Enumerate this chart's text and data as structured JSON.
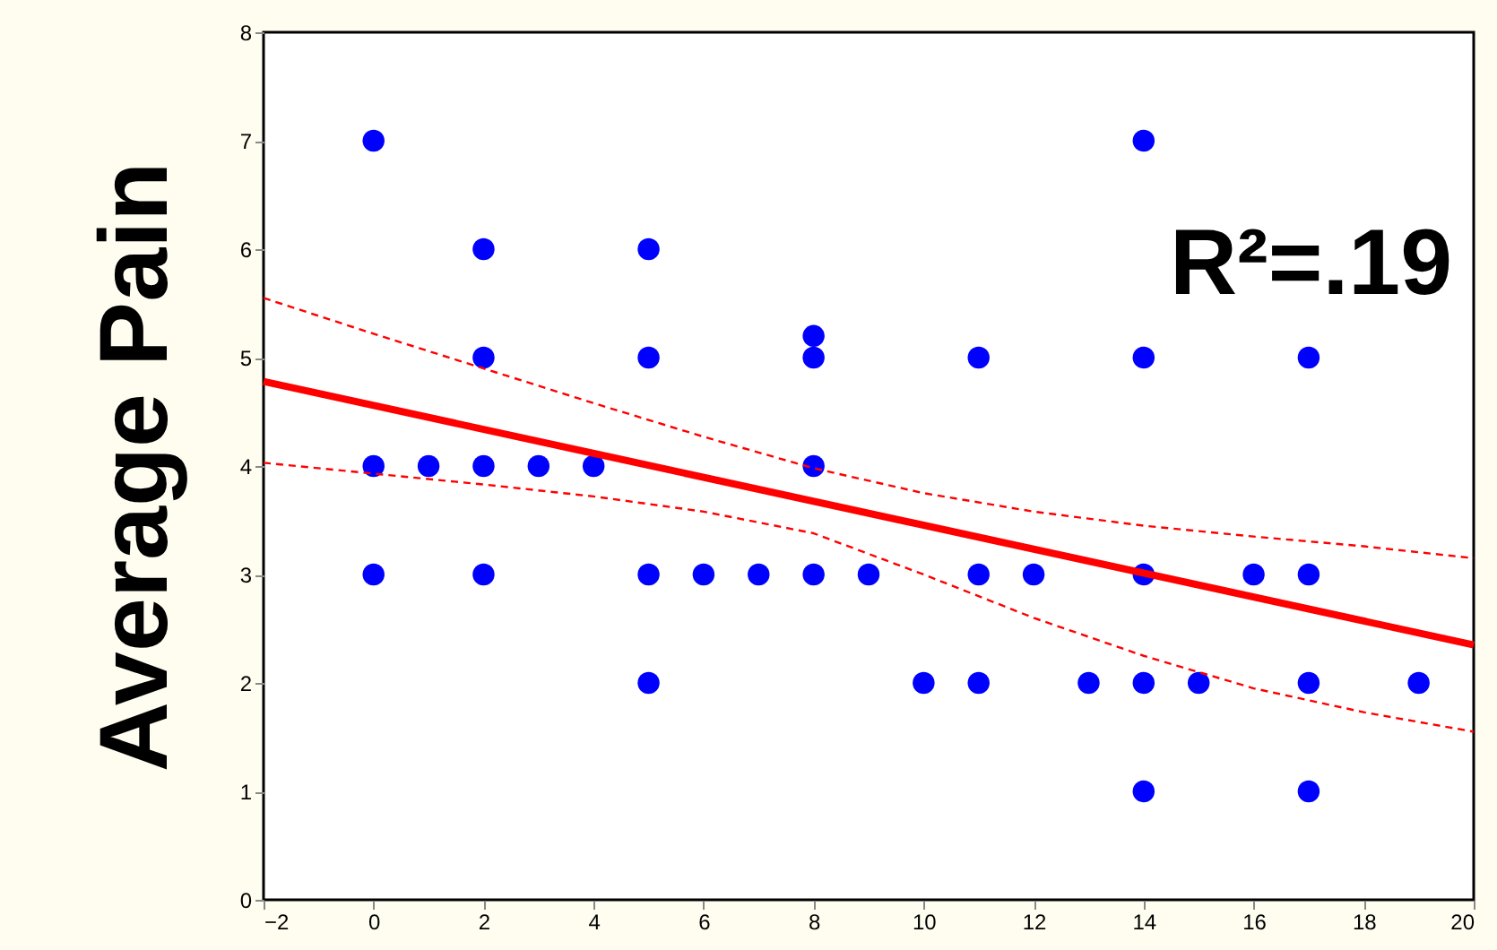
{
  "chart_data": {
    "type": "scatter",
    "ylabel": "Average Pain",
    "xlim": [
      -2,
      20
    ],
    "ylim": [
      0,
      8
    ],
    "xticks": [
      -2,
      0,
      2,
      4,
      6,
      8,
      10,
      12,
      14,
      16,
      18,
      20
    ],
    "yticks": [
      0,
      1,
      2,
      3,
      4,
      5,
      6,
      7,
      8
    ],
    "grid": false,
    "annotations": [
      "R²=.19"
    ],
    "series": [
      {
        "marker": "circle",
        "color": "#0000ff",
        "x": [
          0,
          0,
          0,
          1,
          2,
          2,
          2,
          2,
          3,
          4,
          5,
          5,
          5,
          5,
          6,
          7,
          8,
          8,
          8,
          8,
          9,
          10,
          11,
          11,
          11,
          12,
          13,
          14,
          14,
          14,
          14,
          14,
          15,
          16,
          17,
          17,
          17,
          17,
          19
        ],
        "values": [
          7,
          4,
          3,
          4,
          6,
          5,
          4,
          3,
          4,
          4,
          6,
          5,
          3,
          2,
          3,
          3,
          5.2,
          5,
          4,
          3,
          3,
          2,
          5,
          3,
          2,
          3,
          2,
          7,
          5,
          3,
          2,
          1,
          2,
          3,
          5,
          3,
          2,
          1,
          2
        ]
      },
      {
        "type": "line",
        "marker": "none",
        "color": "#ff0000",
        "line_style": "solid",
        "x": [
          -2,
          20
        ],
        "values": [
          4.78,
          2.35
        ]
      },
      {
        "type": "line",
        "marker": "none",
        "color": "#ff0000",
        "line_style": "dashed",
        "x": [
          -2,
          0,
          2,
          4,
          6,
          8,
          10,
          12,
          14,
          16,
          18,
          20
        ],
        "values": [
          5.55,
          5.22,
          4.9,
          4.58,
          4.27,
          3.98,
          3.75,
          3.58,
          3.45,
          3.35,
          3.26,
          3.15
        ]
      },
      {
        "type": "line",
        "marker": "none",
        "color": "#ff0000",
        "line_style": "dashed",
        "x": [
          -2,
          0,
          2,
          4,
          6,
          8,
          10,
          12,
          14,
          16,
          18,
          20
        ],
        "values": [
          4.03,
          3.93,
          3.83,
          3.72,
          3.58,
          3.38,
          3.0,
          2.6,
          2.25,
          1.95,
          1.73,
          1.55
        ]
      }
    ]
  }
}
